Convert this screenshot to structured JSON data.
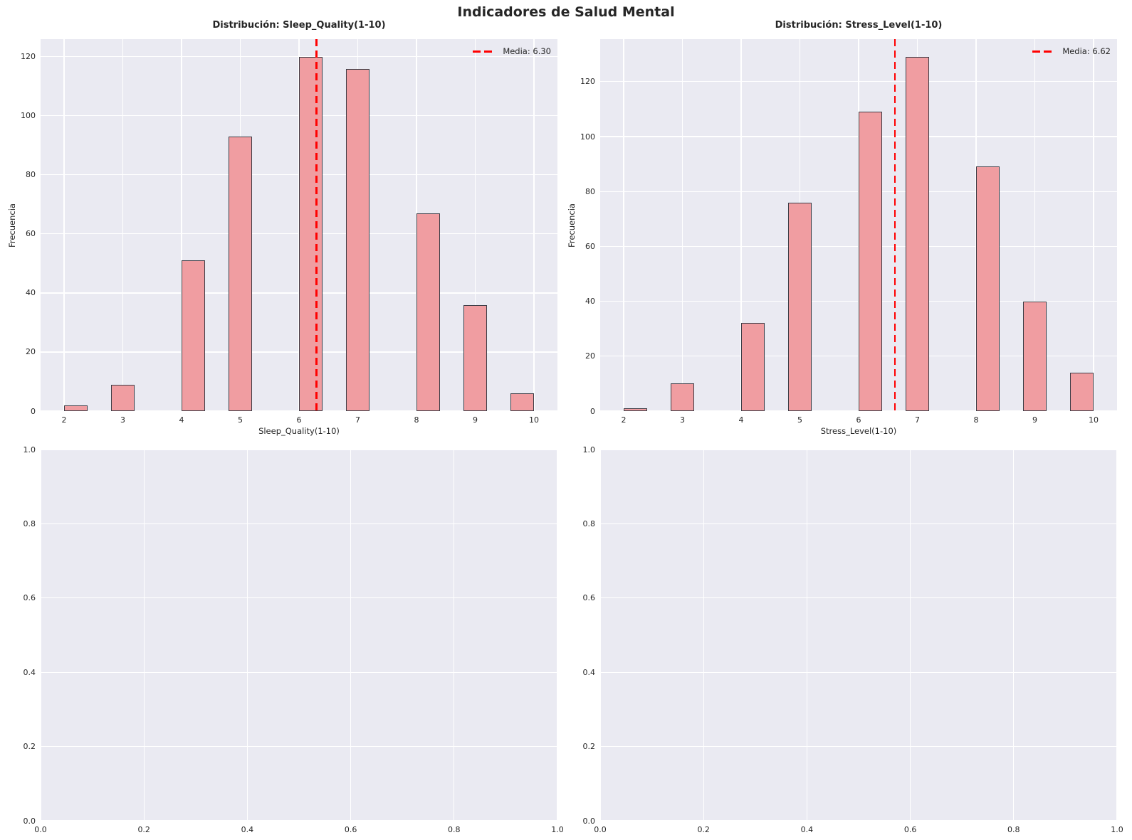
{
  "figure": {
    "suptitle": "Indicadores de Salud Mental",
    "colors": {
      "figure_bg": "#FFFFFF",
      "axes_bg": "#EAEAF2",
      "grid": "#FFFFFF",
      "bar_fill": "#F09DA1",
      "bar_edge": "#3D3D46",
      "mean_line": "#FF0000",
      "text": "#262626"
    }
  },
  "chart_data": [
    {
      "type": "bar",
      "title": "Distribución: Sleep_Quality(1-10)",
      "xlabel": "Sleep_Quality(1-10)",
      "ylabel": "Frecuencia",
      "categories": [
        2,
        3,
        4,
        5,
        6,
        7,
        8,
        9,
        10
      ],
      "values": [
        2,
        9,
        51,
        93,
        120,
        116,
        67,
        36,
        6
      ],
      "bar_left_edges": [
        2.0,
        2.8,
        4.0,
        4.8,
        6.0,
        6.8,
        8.0,
        8.8,
        9.6
      ],
      "bar_width": 0.4,
      "mean_line": {
        "value": 6.3,
        "label": "Media: 6.30"
      },
      "xlim": [
        1.6,
        10.4
      ],
      "ylim": [
        0,
        126.0
      ],
      "xticks": [
        "2",
        "3",
        "4",
        "5",
        "6",
        "7",
        "8",
        "9",
        "10"
      ],
      "yticks": [
        "0",
        "20",
        "40",
        "60",
        "80",
        "100",
        "120"
      ],
      "grid": true,
      "legend_position": "upper right"
    },
    {
      "type": "bar",
      "title": "Distribución: Stress_Level(1-10)",
      "xlabel": "Stress_Level(1-10)",
      "ylabel": "Frecuencia",
      "categories": [
        2,
        3,
        4,
        5,
        6,
        7,
        8,
        9,
        10
      ],
      "values": [
        1,
        10,
        32,
        76,
        109,
        129,
        89,
        40,
        14
      ],
      "bar_left_edges": [
        2.0,
        2.8,
        4.0,
        4.8,
        6.0,
        6.8,
        8.0,
        8.8,
        9.6
      ],
      "bar_width": 0.4,
      "mean_line": {
        "value": 6.62,
        "label": "Media: 6.62"
      },
      "xlim": [
        1.6,
        10.4
      ],
      "ylim": [
        0,
        135.5
      ],
      "xticks": [
        "2",
        "3",
        "4",
        "5",
        "6",
        "7",
        "8",
        "9",
        "10"
      ],
      "yticks": [
        "0",
        "20",
        "40",
        "60",
        "80",
        "100",
        "120"
      ],
      "grid": true,
      "legend_position": "upper right"
    },
    {
      "type": "empty",
      "xlim": [
        0,
        1
      ],
      "ylim": [
        0,
        1
      ],
      "xticks": [
        "0.0",
        "0.2",
        "0.4",
        "0.6",
        "0.8",
        "1.0"
      ],
      "yticks": [
        "0.0",
        "0.2",
        "0.4",
        "0.6",
        "0.8",
        "1.0"
      ],
      "grid": true
    },
    {
      "type": "empty",
      "xlim": [
        0,
        1
      ],
      "ylim": [
        0,
        1
      ],
      "xticks": [
        "0.0",
        "0.2",
        "0.4",
        "0.6",
        "0.8",
        "1.0"
      ],
      "yticks": [
        "0.0",
        "0.2",
        "0.4",
        "0.6",
        "0.8",
        "1.0"
      ],
      "grid": true
    }
  ]
}
